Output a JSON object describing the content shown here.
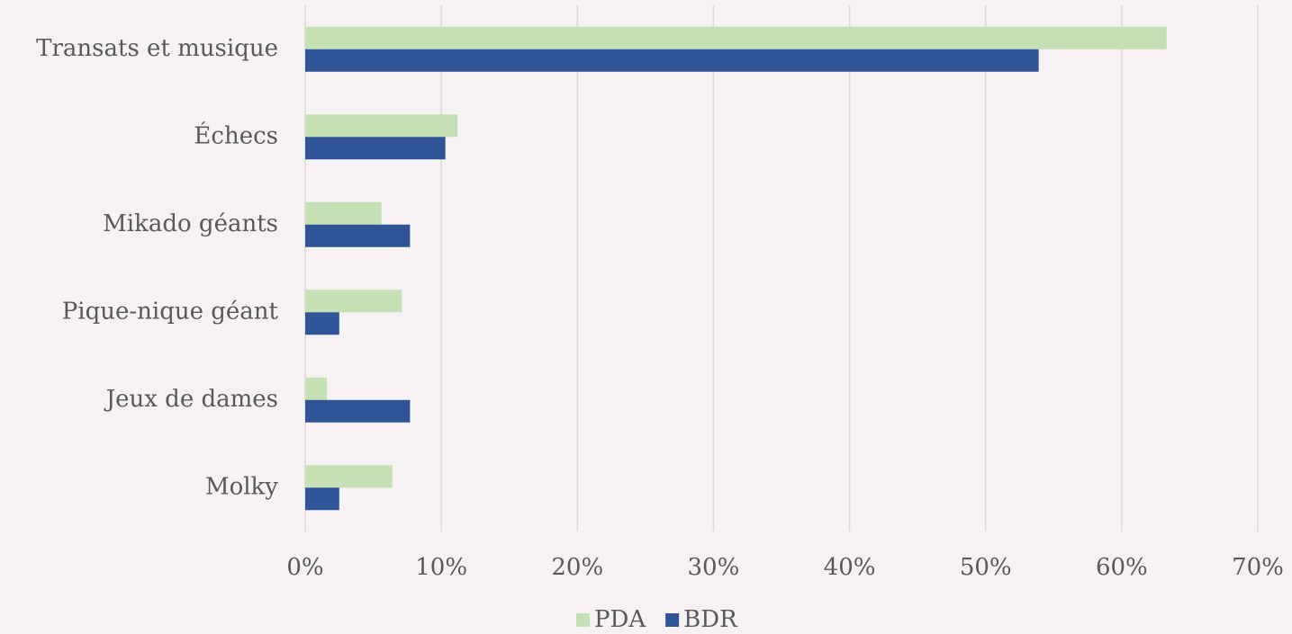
{
  "chart_data": {
    "type": "barh",
    "categories": [
      "Transats et musique",
      "Échecs",
      "Mikado géants",
      "Pique-nique géant",
      "Jeux de dames",
      "Molky"
    ],
    "series": [
      {
        "name": "PDA",
        "color": "#c5e0b4",
        "values": [
          63.3,
          11.2,
          5.6,
          7.1,
          1.6,
          6.4
        ]
      },
      {
        "name": "BDR",
        "color": "#2f5597",
        "values": [
          53.9,
          10.3,
          7.7,
          2.5,
          7.7,
          2.5
        ]
      }
    ],
    "xlim": [
      0,
      70
    ],
    "xticks": [
      {
        "value": 0,
        "label": "0%"
      },
      {
        "value": 10,
        "label": "10%"
      },
      {
        "value": 20,
        "label": "20%"
      },
      {
        "value": 30,
        "label": "30%"
      },
      {
        "value": 40,
        "label": "40%"
      },
      {
        "value": 50,
        "label": "50%"
      },
      {
        "value": 60,
        "label": "60%"
      },
      {
        "value": 70,
        "label": "70%"
      }
    ],
    "grid": true,
    "legend": "bottom"
  }
}
